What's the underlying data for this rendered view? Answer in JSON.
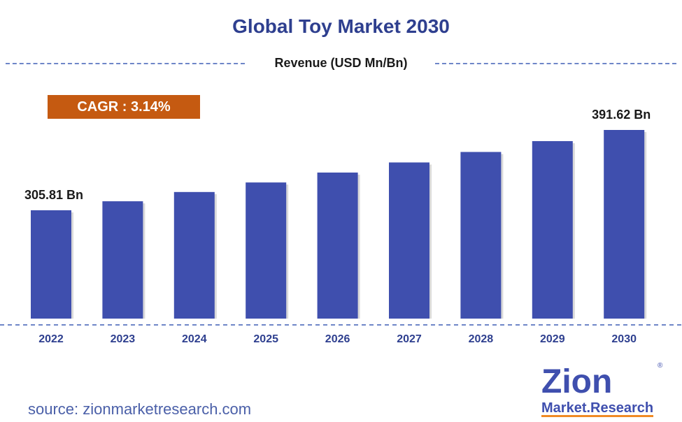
{
  "title": "Global Toy Market 2030",
  "subtitle": "Revenue (USD Mn/Bn)",
  "cagr_label": "CAGR : 3.14%",
  "source": "source: zionmarketresearch.com",
  "logo": {
    "top": "Zion",
    "bottom": "Market.Research",
    "registered": "®"
  },
  "colors": {
    "bar": "#3F4FAE",
    "title": "#2E3F8F",
    "cagr": "#C55A11",
    "dash": "#6E86C8",
    "tick": "#2E3F8F"
  },
  "chart_data": {
    "type": "bar",
    "title": "Global Toy Market 2030",
    "ylabel": "Revenue (USD Mn/Bn)",
    "categories": [
      "2022",
      "2023",
      "2024",
      "2025",
      "2026",
      "2027",
      "2028",
      "2029",
      "2030"
    ],
    "values": [
      305.81,
      315.4,
      325.3,
      335.5,
      346.1,
      356.9,
      368.1,
      379.7,
      391.62
    ],
    "data_labels": [
      {
        "index": 0,
        "text": "305.81 Bn"
      },
      {
        "index": 8,
        "text": "391.62 Bn"
      }
    ],
    "ylim": [
      0,
      420
    ],
    "grid": false,
    "legend": "none"
  }
}
